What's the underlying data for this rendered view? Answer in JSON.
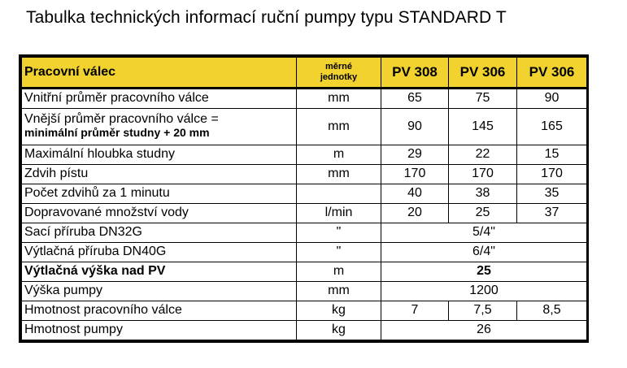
{
  "title": "Tabulka technických informací ruční pumpy typu STANDARD T",
  "header": {
    "label": "Pracovní válec",
    "unit_line1": "měrné",
    "unit_line2": "jednotky",
    "cols": [
      "PV 308",
      "PV 306",
      "PV 306"
    ]
  },
  "rows": [
    {
      "label": "Vnitřní průměr pracovního válce",
      "unit": "mm",
      "values": [
        "65",
        "75",
        "90"
      ]
    },
    {
      "label": "Vnější průměr pracovního válce =",
      "sublabel": "minimální průměr studny + 20 mm",
      "unit": "mm",
      "values": [
        "90",
        "145",
        "165"
      ]
    },
    {
      "label": "Maximální hloubka studny",
      "unit": "m",
      "values": [
        "29",
        "22",
        "15"
      ]
    },
    {
      "label": "Zdvih pístu",
      "unit": "mm",
      "values": [
        "170",
        "170",
        "170"
      ]
    },
    {
      "label": "Počet zdvihů za 1 minutu",
      "unit": "",
      "values": [
        "40",
        "38",
        "35"
      ]
    },
    {
      "label": "Dopravované množství vody",
      "unit": "l/min",
      "values": [
        "20",
        "25",
        "37"
      ]
    },
    {
      "label": "Sací příruba DN32G",
      "unit": "\"",
      "span": "5/4\""
    },
    {
      "label": "Výtlačná příruba DN40G",
      "unit": "\"",
      "span": "6/4\""
    },
    {
      "label": "Výtlačná výška nad PV",
      "unit": "m",
      "span": "25"
    },
    {
      "label": "Výška pumpy",
      "unit": "mm",
      "span": "1200"
    },
    {
      "label": "Hmotnost pracovního válce",
      "unit": "kg",
      "values": [
        "7",
        "7,5",
        "8,5"
      ]
    },
    {
      "label": "Hmotnost pumpy",
      "unit": "kg",
      "span": "26"
    }
  ]
}
